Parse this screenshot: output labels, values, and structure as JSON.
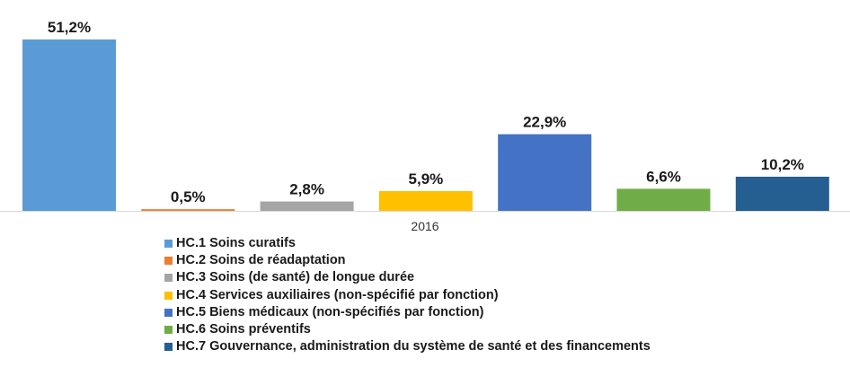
{
  "chart_data": {
    "type": "bar",
    "xlabel": "",
    "ylabel": "",
    "ylim": [
      0,
      51.2
    ],
    "grid": false,
    "legend_position": "bottom",
    "categories": [
      "2016"
    ],
    "series": [
      {
        "name": "HC.1 Soins curatifs",
        "values": [
          51.2
        ],
        "label": "51,2%",
        "color": "#5b9bd5"
      },
      {
        "name": "HC.2 Soins de réadaptation",
        "values": [
          0.5
        ],
        "label": "0,5%",
        "color": "#ed7d31"
      },
      {
        "name": "HC.3 Soins (de santé) de longue durée",
        "values": [
          2.8
        ],
        "label": "2,8%",
        "color": "#a5a5a5"
      },
      {
        "name": "HC.4 Services auxiliaires (non-spécifié par fonction)",
        "values": [
          5.9
        ],
        "label": "5,9%",
        "color": "#ffc000"
      },
      {
        "name": "HC.5 Biens médicaux (non-spécifiés par fonction)",
        "values": [
          22.9
        ],
        "label": "22,9%",
        "color": "#4472c4"
      },
      {
        "name": "HC.6 Soins préventifs",
        "values": [
          6.6
        ],
        "label": "6,6%",
        "color": "#70ad47"
      },
      {
        "name": "HC.7 Gouvernance, administration du système de santé et des financements",
        "values": [
          10.2
        ],
        "label": "10,2%",
        "color": "#255e91"
      }
    ]
  }
}
